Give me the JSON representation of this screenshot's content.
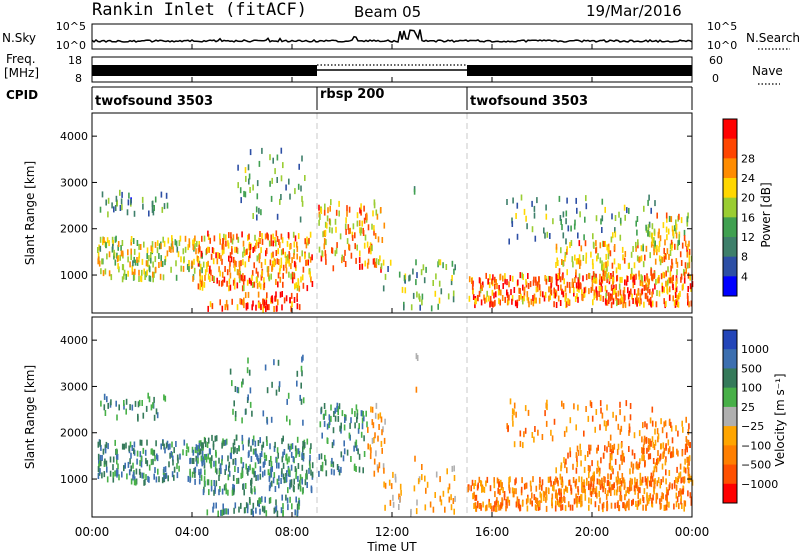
{
  "header": {
    "station": "Rankin Inlet (fitACF)",
    "beam": "Beam 05",
    "date": "19/Mar/2016"
  },
  "sky_panel": {
    "left_label": "N.Sky",
    "right_label": "N.Search",
    "left_ticks": [
      "10^5",
      "10^0"
    ],
    "right_ticks": [
      "10^5",
      "10^0"
    ]
  },
  "freq_panel": {
    "left_label_1": "Freq.",
    "left_label_2": "[MHz]",
    "right_label": "Nave",
    "left_ticks": [
      "18",
      "8"
    ],
    "right_ticks": [
      "60",
      "0"
    ]
  },
  "cpid_panel": {
    "label": "CPID",
    "segments": [
      {
        "name": "twofsound 3503",
        "start_hour": 0,
        "end_hour": 9
      },
      {
        "name": "rbsp 200",
        "start_hour": 9,
        "end_hour": 15
      },
      {
        "name": "twofsound 3503",
        "start_hour": 15,
        "end_hour": 24
      }
    ]
  },
  "colors": {
    "power_scale": [
      "#0000ff",
      "#2d4fa5",
      "#3e7f6a",
      "#40a050",
      "#9acd32",
      "#ffd700",
      "#ff8c00",
      "#ff4500",
      "#ff0000"
    ],
    "velocity_scale": [
      "#2345b8",
      "#3c6fb0",
      "#357a5a",
      "#48b048",
      "#b0b0b0",
      "#ffa500",
      "#ff7f00",
      "#ff5000",
      "#ff0000"
    ]
  },
  "chart_data": [
    {
      "type": "heatmap",
      "name": "power",
      "ylabel": "Slant Range [km]",
      "ylim": [
        180,
        4500
      ],
      "y_ticks": [
        "1000",
        "2000",
        "3000",
        "4000"
      ],
      "x_range_hours": [
        0,
        24
      ],
      "colorbar_label": "Power [dB]",
      "colorbar_ticks": [
        "4",
        "8",
        "12",
        "16",
        "20",
        "24",
        "28"
      ]
    },
    {
      "type": "heatmap",
      "name": "velocity",
      "ylabel": "Slant Range [km]",
      "ylim": [
        180,
        4500
      ],
      "y_ticks": [
        "1000",
        "2000",
        "3000",
        "4000"
      ],
      "x_range_hours": [
        0,
        24
      ],
      "colorbar_label": "Velocity [m s⁻¹]",
      "colorbar_ticks": [
        "1000",
        "500",
        "100",
        "25",
        "−25",
        "−100",
        "−500",
        "−1000"
      ]
    }
  ],
  "x_axis": {
    "label": "Time UT",
    "ticks": [
      "00:00",
      "04:00",
      "08:00",
      "12:00",
      "16:00",
      "20:00",
      "00:00"
    ]
  }
}
